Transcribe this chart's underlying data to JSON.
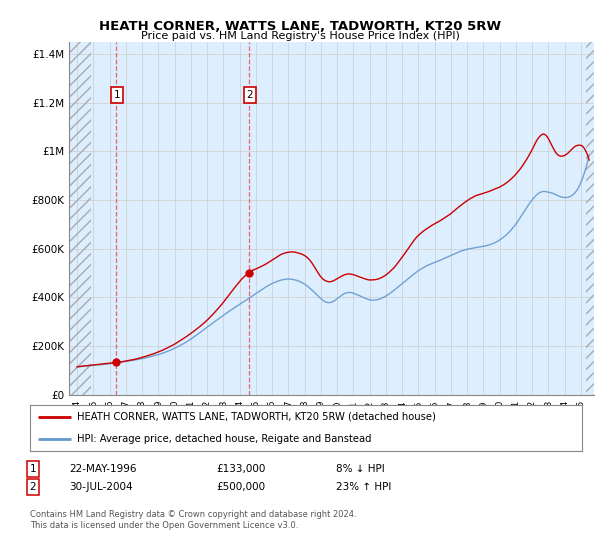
{
  "title": "HEATH CORNER, WATTS LANE, TADWORTH, KT20 5RW",
  "subtitle": "Price paid vs. HM Land Registry's House Price Index (HPI)",
  "legend_line1": "HEATH CORNER, WATTS LANE, TADWORTH, KT20 5RW (detached house)",
  "legend_line2": "HPI: Average price, detached house, Reigate and Banstead",
  "footnote1": "Contains HM Land Registry data © Crown copyright and database right 2024.",
  "footnote2": "This data is licensed under the Open Government Licence v3.0.",
  "marker1_date": "22-MAY-1996",
  "marker1_price": "£133,000",
  "marker1_pct": "8% ↓ HPI",
  "marker1_year": 1996.38,
  "marker1_value": 133000,
  "marker2_date": "30-JUL-2004",
  "marker2_price": "£500,000",
  "marker2_pct": "23% ↑ HPI",
  "marker2_year": 2004.58,
  "marker2_value": 500000,
  "price_color": "#cc0000",
  "hpi_color": "#6699cc",
  "background_color": "#ffffff",
  "plot_bg_color": "#ddeeff",
  "grid_color": "#cccccc",
  "ylim": [
    0,
    1450000
  ],
  "yticks": [
    0,
    200000,
    400000,
    600000,
    800000,
    1000000,
    1200000,
    1400000
  ],
  "ytick_labels": [
    "£0",
    "£200K",
    "£400K",
    "£600K",
    "£800K",
    "£1M",
    "£1.2M",
    "£1.4M"
  ],
  "xlim_start": 1993.5,
  "xlim_end": 2025.8,
  "xtick_years": [
    1994,
    1995,
    1996,
    1997,
    1998,
    1999,
    2000,
    2001,
    2002,
    2003,
    2004,
    2005,
    2006,
    2007,
    2008,
    2009,
    2010,
    2011,
    2012,
    2013,
    2014,
    2015,
    2016,
    2017,
    2018,
    2019,
    2020,
    2021,
    2022,
    2023,
    2024,
    2025
  ],
  "xtick_labels": [
    "94",
    "95",
    "96",
    "97",
    "98",
    "99",
    "00",
    "01",
    "02",
    "03",
    "04",
    "05",
    "06",
    "07",
    "08",
    "09",
    "10",
    "11",
    "12",
    "13",
    "14",
    "15",
    "16",
    "17",
    "18",
    "19",
    "20",
    "21",
    "22",
    "23",
    "24",
    "25"
  ]
}
